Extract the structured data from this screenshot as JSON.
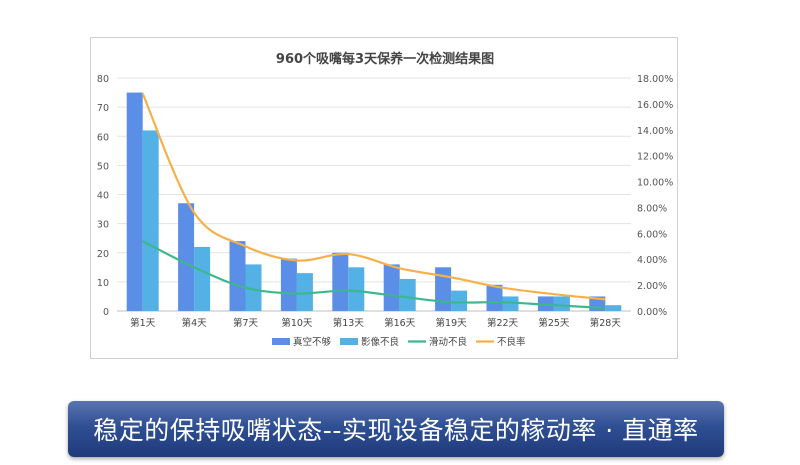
{
  "banner": {
    "text": "稳定的保持吸嘴状态--实现设备稳定的稼动率 · 直通率"
  },
  "chart_data": {
    "type": "bar",
    "title": "960个吸嘴每3天保养一次检测结果图",
    "categories": [
      "第1天",
      "第4天",
      "第7天",
      "第10天",
      "第13天",
      "第16天",
      "第19天",
      "第22天",
      "第25天",
      "第28天"
    ],
    "y_left": {
      "min": 0,
      "max": 80,
      "step": 10,
      "ticks": [
        "0",
        "10",
        "20",
        "30",
        "40",
        "50",
        "60",
        "70",
        "80"
      ]
    },
    "y_right": {
      "min": 0,
      "max": 18,
      "step": 2,
      "ticks": [
        "0.00%",
        "2.00%",
        "4.00%",
        "6.00%",
        "8.00%",
        "10.00%",
        "12.00%",
        "14.00%",
        "16.00%",
        "18.00%"
      ]
    },
    "series": [
      {
        "name": "真空不够",
        "kind": "bar",
        "axis": "left",
        "color": "#5b8ee6",
        "values": [
          75,
          37,
          24,
          18,
          20,
          16,
          15,
          9,
          5,
          5
        ]
      },
      {
        "name": "影像不良",
        "kind": "bar",
        "axis": "left",
        "color": "#53b1e6",
        "values": [
          62,
          22,
          16,
          13,
          15,
          11,
          7,
          5,
          5,
          2
        ]
      },
      {
        "name": "滑动不良",
        "kind": "line",
        "axis": "left",
        "color": "#3cb88c",
        "values": [
          24,
          15,
          8,
          6,
          7,
          5,
          3,
          3,
          2,
          1
        ]
      },
      {
        "name": "不良率",
        "kind": "line",
        "axis": "right",
        "color": "#f5b04c",
        "values": [
          16.8,
          7.6,
          5.0,
          3.9,
          4.4,
          3.3,
          2.6,
          1.8,
          1.3,
          0.9
        ]
      }
    ],
    "grid": true,
    "legend": "bottom"
  }
}
